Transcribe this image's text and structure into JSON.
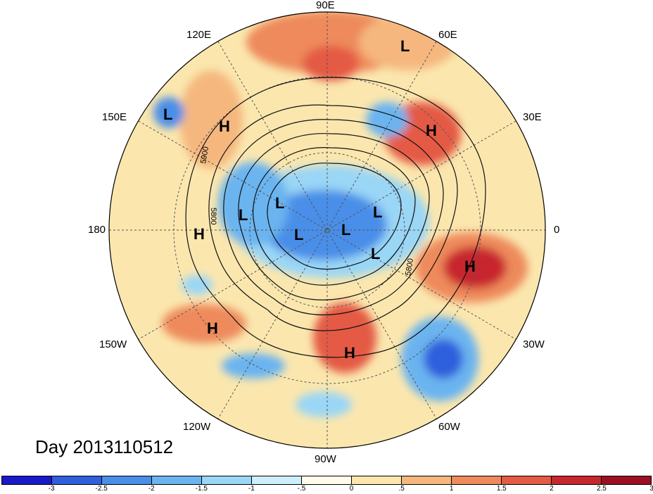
{
  "title": "Day 2013110512",
  "longitude_labels": {
    "n": "90E",
    "nne": "60E",
    "nnw": "120E",
    "wnw": "150E",
    "ene": "30E",
    "w": "180",
    "e": "0",
    "wsw": "150W",
    "ese": "30W",
    "ssw": "120W",
    "sse": "60W",
    "s": "90W"
  },
  "contour_labels": [
    "5900",
    "5800",
    "5800"
  ],
  "pressure_centers": [
    {
      "id": "L1",
      "label": "L"
    },
    {
      "id": "L2",
      "label": "L"
    },
    {
      "id": "L3",
      "label": "L"
    },
    {
      "id": "L4",
      "label": "L"
    },
    {
      "id": "L5",
      "label": "L"
    },
    {
      "id": "L6",
      "label": "L"
    },
    {
      "id": "L7",
      "label": "L"
    },
    {
      "id": "L8",
      "label": "L"
    },
    {
      "id": "H1",
      "label": "H"
    },
    {
      "id": "H2",
      "label": "H"
    },
    {
      "id": "H3",
      "label": "H"
    },
    {
      "id": "H4",
      "label": "H"
    },
    {
      "id": "H5",
      "label": "H"
    },
    {
      "id": "H6",
      "label": "H"
    }
  ],
  "colorbar": {
    "colors": [
      "#1a19c8",
      "#2f5fdc",
      "#4a8ee8",
      "#6ab4f0",
      "#9ad6f6",
      "#cdeefa",
      "#fffde8",
      "#fbe7ae",
      "#f5b77e",
      "#ee8a5c",
      "#e45a44",
      "#c7282e",
      "#9a0f22"
    ],
    "ticks": [
      "-3",
      "-2.5",
      "-2",
      "-1.5",
      "-1",
      "-.5",
      "0",
      ".5",
      "1",
      "1.5",
      "2",
      "2.5",
      "3"
    ]
  }
}
